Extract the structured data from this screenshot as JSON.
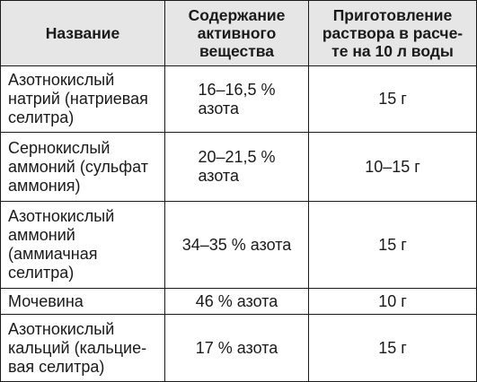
{
  "table": {
    "headers": [
      "Название",
      "Содержание\nактивного\nвещества",
      "Приготовление\nраствора в расче-\nте на 10 л воды"
    ],
    "rows": [
      {
        "name": "Азотнокислый\nнатрий (натриевая\nселитра)",
        "content": "16–16,5 %\nазота",
        "prep": "15 г"
      },
      {
        "name": "Сернокислый\nаммоний (сульфат\nаммония)",
        "content": "20–21,5 %\nазота",
        "prep": "10–15 г"
      },
      {
        "name": "Азотнокислый\nаммоний\n(аммиачная\nселитра)",
        "content": "34–35 % азота",
        "prep": "15 г"
      },
      {
        "name": "Мочевина",
        "content": "46 % азота",
        "prep": "10 г"
      },
      {
        "name": "Азотнокислый\nкальций (кальцие-\nвая селитра)",
        "content": "17 % азота",
        "prep": "15 г"
      }
    ]
  }
}
